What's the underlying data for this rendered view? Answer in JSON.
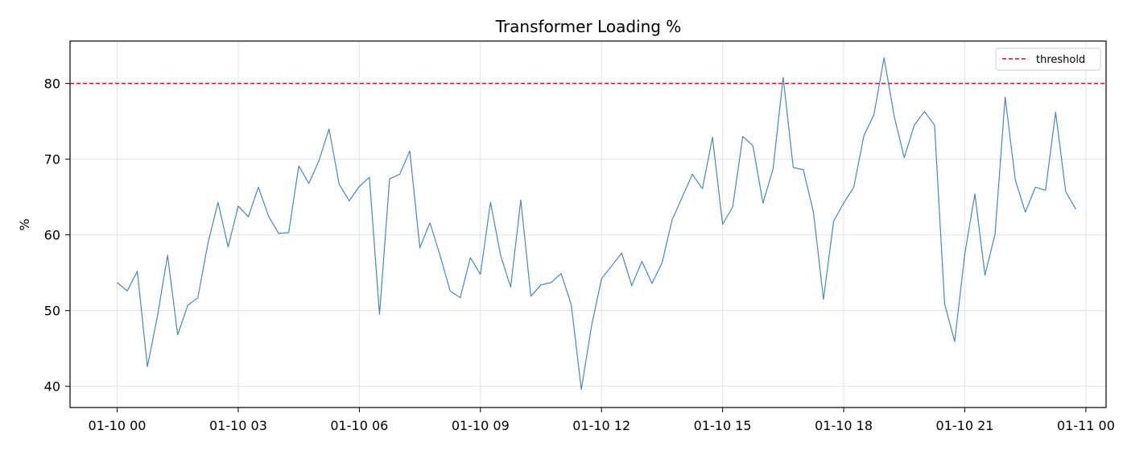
{
  "chart_data": {
    "type": "line",
    "title": "Transformer Loading %",
    "xlabel": "",
    "ylabel": "%",
    "x_start": "2024-01-10T00:00",
    "x_step_minutes": 15,
    "xlim": [
      "2024-01-09T22:50",
      "2024-01-11T00:30"
    ],
    "ylim": [
      37.2,
      85.6
    ],
    "x_ticks": [
      "01-10 00",
      "01-10 03",
      "01-10 06",
      "01-10 09",
      "01-10 12",
      "01-10 15",
      "01-10 18",
      "01-10 21",
      "01-11 00"
    ],
    "y_ticks": [
      40,
      50,
      60,
      70,
      80
    ],
    "grid": true,
    "legend_position": "top-right",
    "line_color": "#1f77b4",
    "threshold_color": "#ff0000",
    "series": [
      {
        "values": [
          53.7,
          52.6,
          55.2,
          42.6,
          49.3,
          57.3,
          46.8,
          50.7,
          51.7,
          58.9,
          64.3,
          58.4,
          63.8,
          62.4,
          66.3,
          62.5,
          60.2,
          60.3,
          69.1,
          66.8,
          69.8,
          74.0,
          66.7,
          64.5,
          66.4,
          67.6,
          49.5,
          67.4,
          68.0,
          71.1,
          58.3,
          61.6,
          57.3,
          52.6,
          51.7,
          57.0,
          54.8,
          64.3,
          57.3,
          53.1,
          64.6,
          51.9,
          53.4,
          53.7,
          54.9,
          50.8,
          39.6,
          47.9,
          54.2,
          55.9,
          57.6,
          53.3,
          56.5,
          53.6,
          56.3,
          62.0,
          65.0,
          68.0,
          66.1,
          72.9,
          61.4,
          63.7,
          73.0,
          71.8,
          64.2,
          68.7,
          80.8,
          68.9,
          68.6,
          63.0,
          51.5,
          61.8,
          64.2,
          66.3,
          73.1,
          75.9,
          83.4,
          75.7,
          70.2,
          74.5,
          76.3,
          74.5,
          50.9,
          45.9,
          57.5,
          65.4,
          54.7,
          60.1,
          78.2,
          67.3,
          63.0,
          66.3,
          65.9,
          76.2,
          65.7,
          63.4
        ]
      }
    ],
    "threshold": {
      "name": "threshold",
      "value": 80
    }
  }
}
